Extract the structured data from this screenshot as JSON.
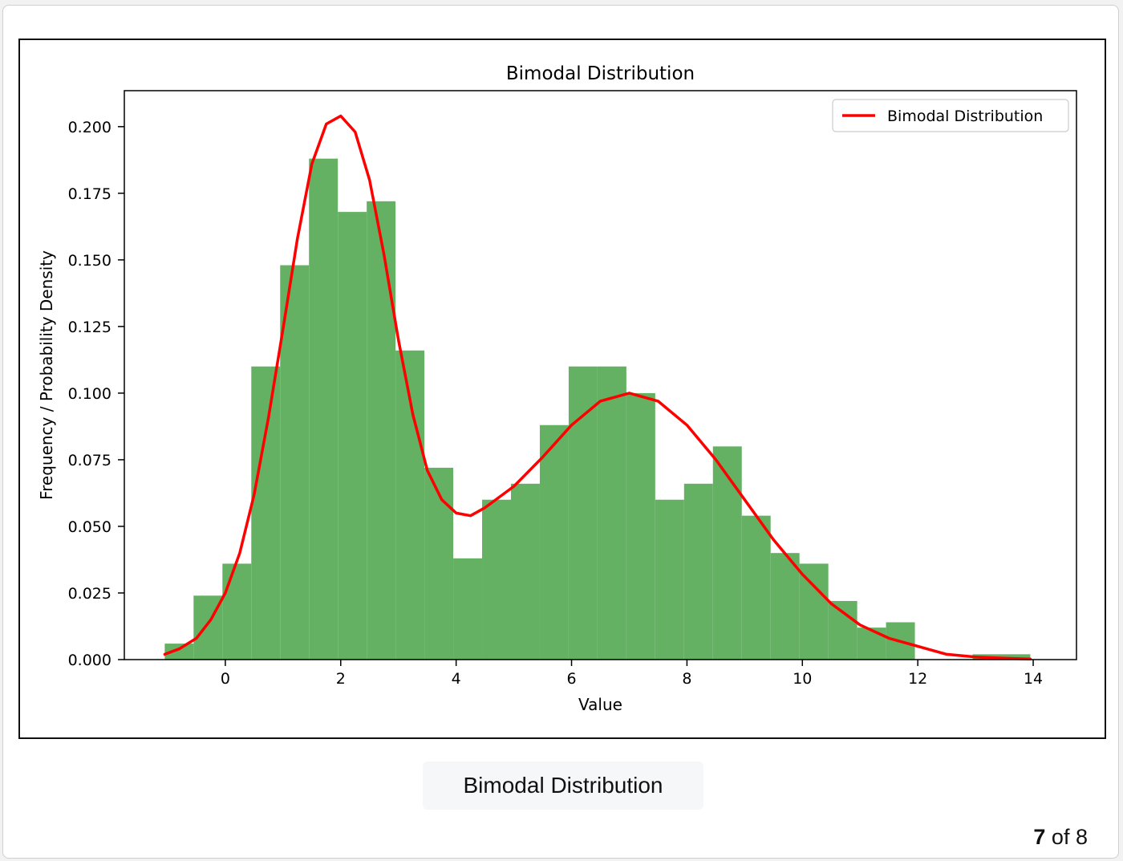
{
  "viewer": {
    "caption": "Bimodal Distribution",
    "counter_current": "7",
    "counter_sep": "of",
    "counter_total": "8"
  },
  "chart_data": {
    "type": "bar",
    "title": "Bimodal Distribution",
    "xlabel": "Value",
    "ylabel": "Frequency / Probability Density",
    "xlim": [
      -1.75,
      14.75
    ],
    "ylim": [
      0,
      0.2135
    ],
    "xticks": [
      0,
      2,
      4,
      6,
      8,
      10,
      12,
      14
    ],
    "xtick_labels": [
      "0",
      "2",
      "4",
      "6",
      "8",
      "10",
      "12",
      "14"
    ],
    "yticks": [
      0,
      0.025,
      0.05,
      0.075,
      0.1,
      0.125,
      0.15,
      0.175,
      0.2
    ],
    "ytick_labels": [
      "0.000",
      "0.025",
      "0.050",
      "0.075",
      "0.100",
      "0.125",
      "0.150",
      "0.175",
      "0.200"
    ],
    "histogram": {
      "color": "#65b164",
      "bin_edges": [
        -1.05,
        -0.55,
        -0.05,
        0.45,
        0.95,
        1.45,
        1.95,
        2.45,
        2.95,
        3.45,
        3.95,
        4.45,
        4.95,
        5.45,
        5.95,
        6.45,
        6.95,
        7.45,
        7.95,
        8.45,
        8.95,
        9.45,
        9.95,
        10.45,
        10.95,
        11.45,
        11.95,
        12.45,
        12.95,
        13.45,
        13.95
      ],
      "values": [
        0.006,
        0.024,
        0.036,
        0.11,
        0.148,
        0.188,
        0.168,
        0.172,
        0.116,
        0.072,
        0.038,
        0.06,
        0.066,
        0.088,
        0.11,
        0.11,
        0.1,
        0.06,
        0.066,
        0.08,
        0.054,
        0.04,
        0.036,
        0.022,
        0.012,
        0.014,
        0.0,
        0.0,
        0.002,
        0.002
      ]
    },
    "series": [
      {
        "name": "Bimodal Distribution",
        "color": "#ff0000",
        "type": "line",
        "x": [
          -1.05,
          -0.8,
          -0.5,
          -0.25,
          0,
          0.25,
          0.5,
          0.75,
          1.0,
          1.25,
          1.5,
          1.75,
          2.0,
          2.25,
          2.5,
          2.75,
          3.0,
          3.25,
          3.5,
          3.75,
          4.0,
          4.25,
          4.5,
          4.75,
          5.0,
          5.5,
          6.0,
          6.5,
          7.0,
          7.5,
          8.0,
          8.5,
          9.0,
          9.5,
          10.0,
          10.5,
          11.0,
          11.5,
          12.0,
          12.5,
          13.0,
          13.5,
          13.95
        ],
        "y": [
          0.002,
          0.004,
          0.008,
          0.015,
          0.025,
          0.04,
          0.062,
          0.091,
          0.124,
          0.158,
          0.186,
          0.201,
          0.204,
          0.198,
          0.18,
          0.152,
          0.12,
          0.092,
          0.071,
          0.06,
          0.055,
          0.054,
          0.057,
          0.061,
          0.065,
          0.076,
          0.088,
          0.097,
          0.1,
          0.097,
          0.088,
          0.075,
          0.06,
          0.045,
          0.032,
          0.021,
          0.013,
          0.008,
          0.005,
          0.002,
          0.001,
          0.0005,
          0.0002
        ]
      }
    ],
    "legend": "top-right",
    "grid": false
  }
}
